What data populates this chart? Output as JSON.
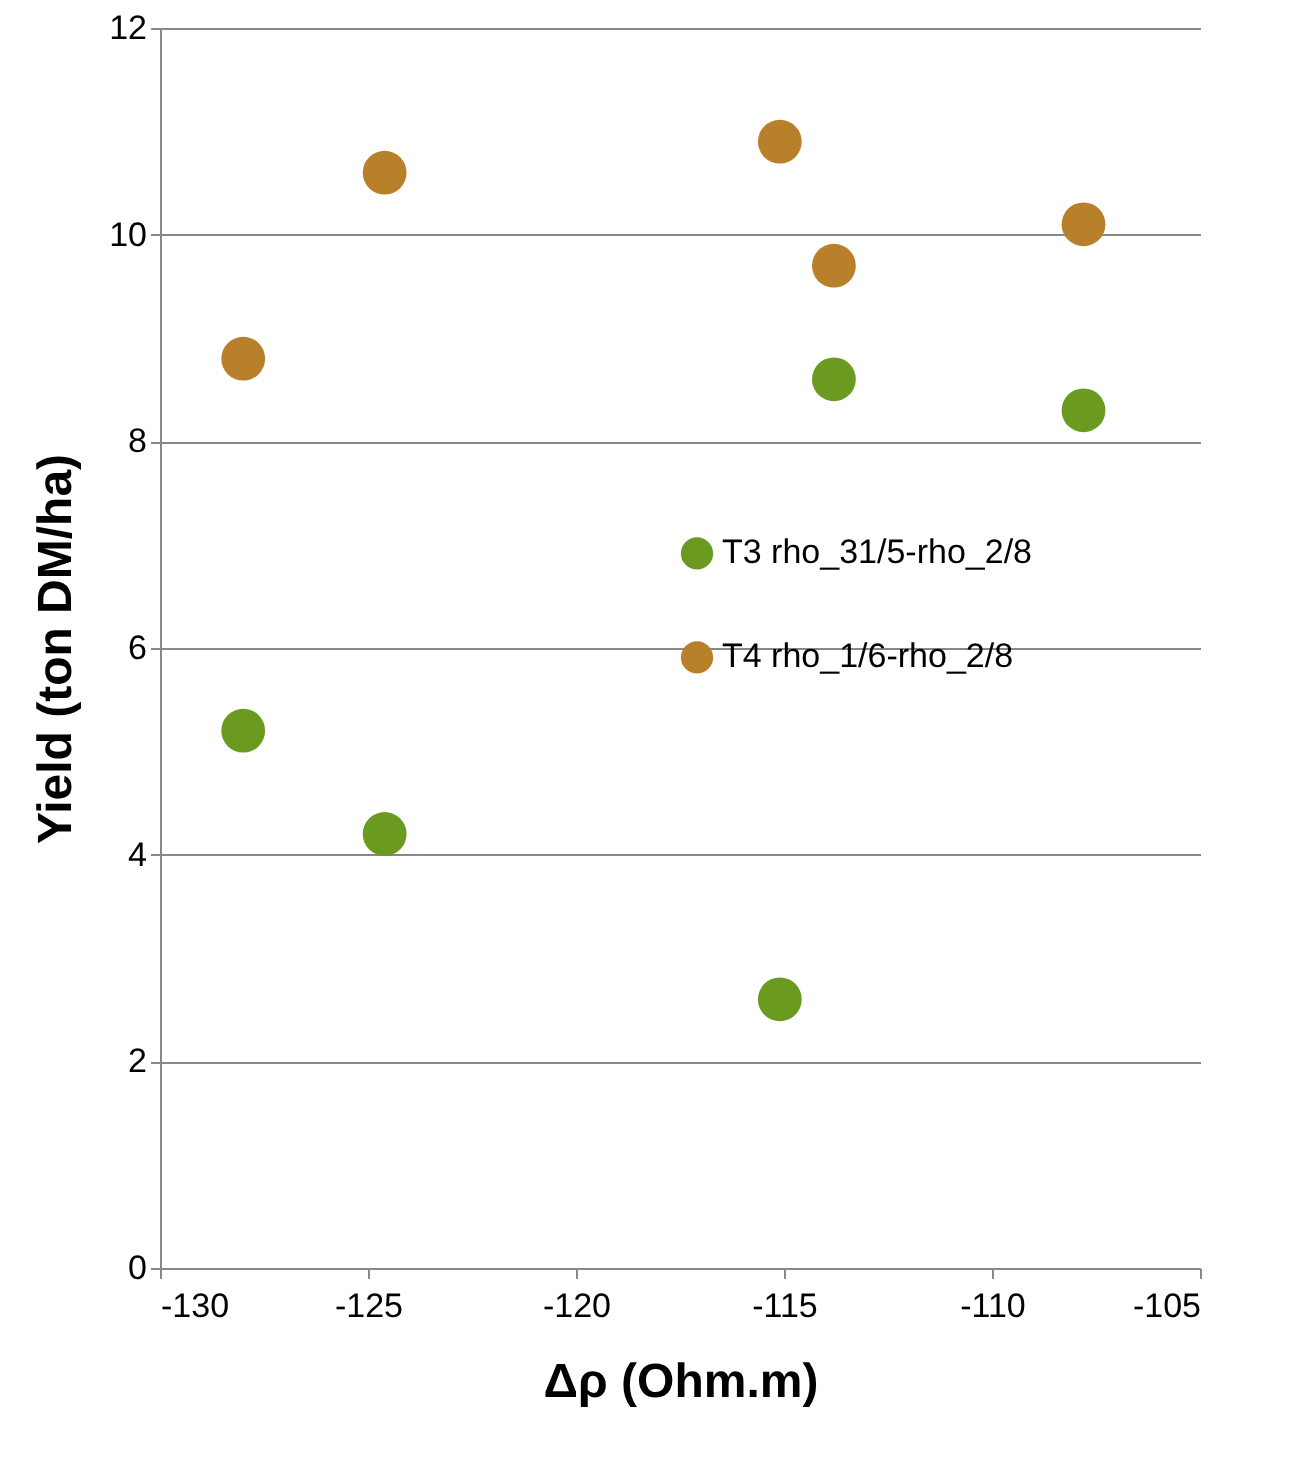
{
  "chart_data": {
    "type": "scatter",
    "xlabel": "Δρ (Ohm.m)",
    "ylabel": "Yield (ton DM/ha)",
    "xlim": [
      -130,
      -105
    ],
    "xticks": [
      -130,
      -125,
      -120,
      -115,
      -110,
      -105
    ],
    "ylim": [
      0,
      12
    ],
    "yticks": [
      0,
      2,
      4,
      6,
      8,
      10,
      12
    ],
    "grid": "y",
    "legend": "right",
    "marker": "circle",
    "series": [
      {
        "name": "T3 rho_31/5-rho_2/8",
        "color": "#6a9a1f",
        "x": [
          -128.0,
          -124.6,
          -115.1,
          -113.8,
          -107.8
        ],
        "values": [
          5.2,
          4.2,
          2.6,
          8.6,
          8.3
        ]
      },
      {
        "name": "T4 rho_1/6-rho_2/8",
        "color": "#b8802a",
        "x": [
          -128.0,
          -124.6,
          -115.1,
          -113.8,
          -107.8
        ],
        "values": [
          8.8,
          10.6,
          10.9,
          9.7,
          10.1
        ]
      }
    ]
  }
}
